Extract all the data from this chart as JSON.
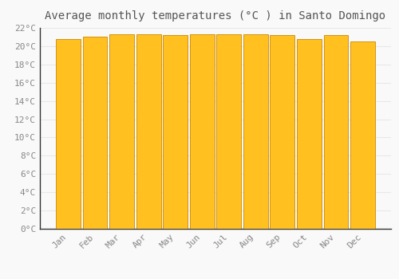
{
  "title": "Average monthly temperatures (°C ) in Santo Domingo",
  "months": [
    "Jan",
    "Feb",
    "Mar",
    "Apr",
    "May",
    "Jun",
    "Jul",
    "Aug",
    "Sep",
    "Oct",
    "Nov",
    "Dec"
  ],
  "temperatures": [
    20.8,
    21.0,
    21.3,
    21.3,
    21.2,
    21.3,
    21.3,
    21.3,
    21.2,
    20.8,
    21.2,
    20.5
  ],
  "bar_color_face": "#FFC020",
  "bar_color_edge": "#CC8800",
  "ylim": [
    0,
    22
  ],
  "ytick_step": 2,
  "background_color": "#f9f9f9",
  "grid_color": "#e8e8e8",
  "title_fontsize": 10,
  "tick_fontsize": 8,
  "tick_label_color": "#888888",
  "title_color": "#555555",
  "spine_color": "#333333"
}
